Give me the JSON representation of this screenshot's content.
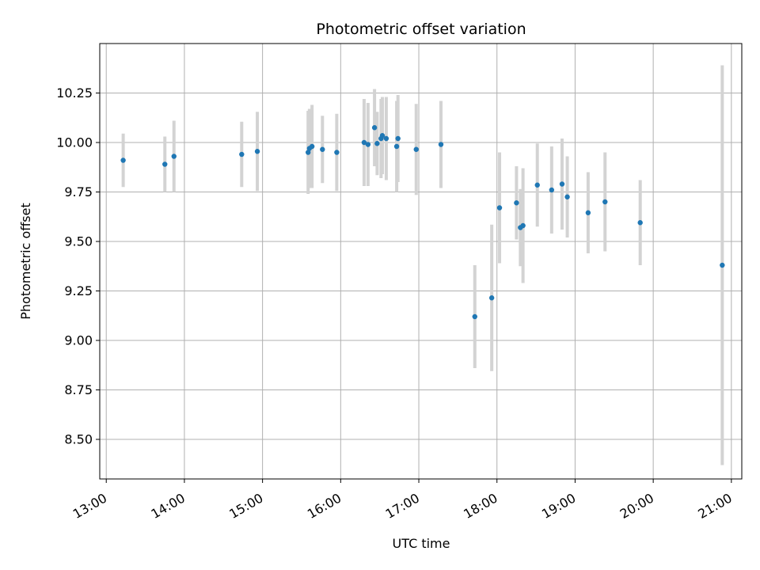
{
  "chart_data": {
    "type": "scatter",
    "title": "Photometric offset variation",
    "xlabel": "UTC time",
    "ylabel": "Photometric offset",
    "x_axis_type": "time",
    "xlim": [
      "12:55",
      "21:08"
    ],
    "ylim": [
      8.3,
      10.5
    ],
    "x_ticks": [
      "13:00",
      "14:00",
      "15:00",
      "16:00",
      "17:00",
      "18:00",
      "19:00",
      "20:00",
      "21:00"
    ],
    "y_ticks": [
      8.5,
      8.75,
      9.0,
      9.25,
      9.5,
      9.75,
      10.0,
      10.25
    ],
    "y_tick_labels": [
      "8.50",
      "8.75",
      "9.00",
      "9.25",
      "9.50",
      "9.75",
      "10.00",
      "10.25"
    ],
    "grid": true,
    "legend": "none",
    "point_color": "#1f77b4",
    "errorbar_color": "#d3d3d3",
    "points": [
      {
        "time": "13:13",
        "y": 9.91,
        "err": 0.135
      },
      {
        "time": "13:45",
        "y": 9.89,
        "err": 0.14
      },
      {
        "time": "13:52",
        "y": 9.93,
        "err": 0.18
      },
      {
        "time": "14:44",
        "y": 9.94,
        "err": 0.165
      },
      {
        "time": "14:56",
        "y": 9.955,
        "err": 0.2
      },
      {
        "time": "15:35",
        "y": 9.95,
        "err": 0.21
      },
      {
        "time": "15:36",
        "y": 9.97,
        "err": 0.2
      },
      {
        "time": "15:38",
        "y": 9.98,
        "err": 0.21
      },
      {
        "time": "15:46",
        "y": 9.965,
        "err": 0.17
      },
      {
        "time": "15:57",
        "y": 9.95,
        "err": 0.195
      },
      {
        "time": "16:18",
        "y": 10.0,
        "err": 0.22
      },
      {
        "time": "16:21",
        "y": 9.99,
        "err": 0.21
      },
      {
        "time": "16:26",
        "y": 10.075,
        "err": 0.195
      },
      {
        "time": "16:28",
        "y": 9.995,
        "err": 0.16
      },
      {
        "time": "16:31",
        "y": 10.02,
        "err": 0.2
      },
      {
        "time": "16:32",
        "y": 10.035,
        "err": 0.195
      },
      {
        "time": "16:35",
        "y": 10.02,
        "err": 0.21
      },
      {
        "time": "16:43",
        "y": 9.98,
        "err": 0.23
      },
      {
        "time": "16:44",
        "y": 10.02,
        "err": 0.22
      },
      {
        "time": "16:58",
        "y": 9.965,
        "err": 0.23
      },
      {
        "time": "17:17",
        "y": 9.99,
        "err": 0.22
      },
      {
        "time": "17:43",
        "y": 9.12,
        "err": 0.26
      },
      {
        "time": "17:56",
        "y": 9.215,
        "err": 0.37
      },
      {
        "time": "18:02",
        "y": 9.67,
        "err": 0.28
      },
      {
        "time": "18:15",
        "y": 9.695,
        "err": 0.185
      },
      {
        "time": "18:18",
        "y": 9.57,
        "err": 0.195
      },
      {
        "time": "18:20",
        "y": 9.58,
        "err": 0.29
      },
      {
        "time": "18:31",
        "y": 9.785,
        "err": 0.21
      },
      {
        "time": "18:42",
        "y": 9.76,
        "err": 0.22
      },
      {
        "time": "18:50",
        "y": 9.79,
        "err": 0.23
      },
      {
        "time": "18:54",
        "y": 9.725,
        "err": 0.205
      },
      {
        "time": "19:10",
        "y": 9.645,
        "err": 0.205
      },
      {
        "time": "19:23",
        "y": 9.7,
        "err": 0.25
      },
      {
        "time": "19:50",
        "y": 9.595,
        "err": 0.215
      },
      {
        "time": "20:53",
        "y": 9.38,
        "err": 1.01
      }
    ]
  }
}
